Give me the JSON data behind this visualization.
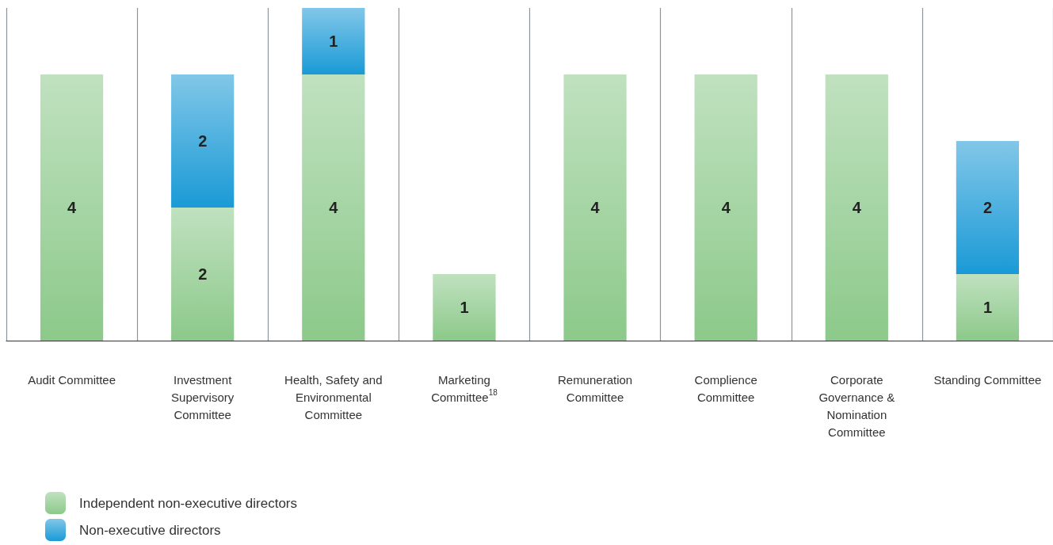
{
  "chart_data": {
    "type": "bar",
    "stacked": true,
    "data_labels": true,
    "grid": "x",
    "legend": "bottom left",
    "categories": [
      "Audit Committee",
      "Investment Supervisory Committee",
      "Health, Safety and Environmental Committee",
      "Marketing Committee$^{18}$",
      "Remuneration Committee",
      "Complience Committee",
      "Corporate Governance & Nomination Committee",
      "Standing Committee"
    ],
    "series": [
      {
        "name": "Independent non-executive directors",
        "color": "#8cc98a",
        "values": [
          4,
          2,
          4,
          1,
          4,
          4,
          4,
          1
        ]
      },
      {
        "name": "Non-executive directors",
        "color": "#1a9ad6",
        "values": [
          null,
          2,
          1,
          null,
          null,
          null,
          null,
          2
        ]
      }
    ]
  }
}
